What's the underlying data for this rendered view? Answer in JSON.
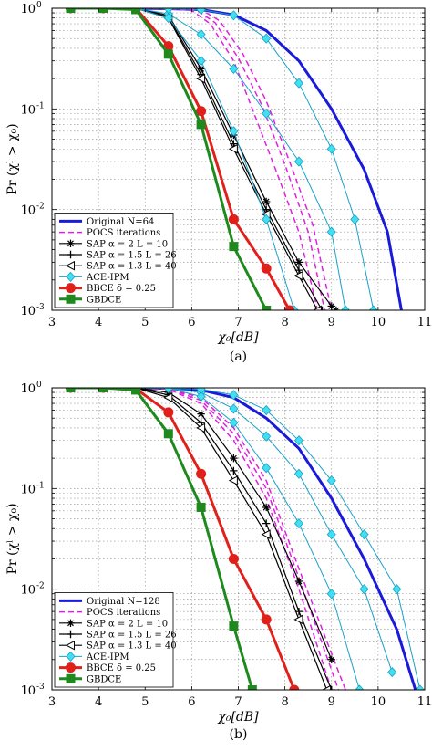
{
  "chart_data": [
    {
      "type": "line",
      "caption": "(a)",
      "xlabel": "χ₀[dB]",
      "ylabel": "Pr (χˡ > χ₀)",
      "xlim": [
        3,
        11
      ],
      "ylim": [
        0.001,
        1
      ],
      "yscale": "log",
      "grid": true,
      "legend_position": "bottom-left",
      "x_ticks": [
        "3",
        "4",
        "5",
        "6",
        "7",
        "8",
        "9",
        "10",
        "11"
      ],
      "y_ticks": [
        {
          "base": "10",
          "exp": "-3",
          "value": 0.001
        },
        {
          "base": "10",
          "exp": "-2",
          "value": 0.01
        },
        {
          "base": "10",
          "exp": "-1",
          "value": 0.1
        },
        {
          "base": "10",
          "exp": "0",
          "value": 1
        }
      ],
      "series": [
        {
          "name": "Original N=64",
          "color": "#1a1adb",
          "width": 3,
          "dash": "",
          "marker": "none",
          "x": [
            3.4,
            4.1,
            4.8,
            5.5,
            6.2,
            6.9,
            7.6,
            8.3,
            9.0,
            9.7,
            10.2,
            10.5
          ],
          "y": [
            1,
            1,
            1,
            0.99,
            0.97,
            0.86,
            0.6,
            0.3,
            0.1,
            0.025,
            0.006,
            0.001
          ]
        },
        {
          "name": "POCS iterations",
          "color": "#e020e0",
          "width": 1.5,
          "dash": "6,4",
          "marker": "none",
          "x": [
            3.4,
            4.1,
            4.8,
            5.5,
            6.0,
            6.4,
            6.9,
            7.3,
            7.8,
            8.3,
            8.7
          ],
          "y": [
            1,
            1,
            1,
            0.99,
            0.95,
            0.7,
            0.3,
            0.1,
            0.025,
            0.006,
            0.001
          ]
        },
        {
          "name": "POCS iterations",
          "color": "#e020e0",
          "width": 1.5,
          "dash": "6,4",
          "marker": "none",
          "legend": false,
          "x": [
            3.4,
            4.1,
            4.8,
            5.5,
            6.1,
            6.5,
            7.0,
            7.5,
            8.0,
            8.5,
            8.85
          ],
          "y": [
            1,
            1,
            1,
            0.99,
            0.96,
            0.72,
            0.32,
            0.11,
            0.028,
            0.006,
            0.001
          ]
        },
        {
          "name": "POCS iterations",
          "color": "#e020e0",
          "width": 1.5,
          "dash": "6,4",
          "marker": "none",
          "legend": false,
          "x": [
            3.4,
            4.1,
            4.8,
            5.5,
            6.2,
            6.6,
            7.1,
            7.6,
            8.1,
            8.6,
            9.0
          ],
          "y": [
            1,
            1,
            1,
            0.99,
            0.97,
            0.75,
            0.35,
            0.12,
            0.03,
            0.007,
            0.001
          ]
        },
        {
          "name": "SAP α = 2 L = 10",
          "color": "#000000",
          "width": 1.2,
          "dash": "",
          "marker": "star",
          "x": [
            3.4,
            4.1,
            4.8,
            5.5,
            6.2,
            6.9,
            7.6,
            8.3,
            9.0,
            9.1
          ],
          "y": [
            1,
            1,
            1,
            0.85,
            0.25,
            0.055,
            0.012,
            0.003,
            0.0011,
            0.001
          ]
        },
        {
          "name": "SAP α = 1.5 L = 26",
          "color": "#000000",
          "width": 1.2,
          "dash": "",
          "marker": "plus",
          "x": [
            3.4,
            4.1,
            4.8,
            5.5,
            6.2,
            6.9,
            7.6,
            8.3,
            8.8
          ],
          "y": [
            1,
            1,
            1,
            0.82,
            0.22,
            0.045,
            0.01,
            0.0025,
            0.001
          ]
        },
        {
          "name": "SAP α = 1.3 L = 40",
          "color": "#000000",
          "width": 1.2,
          "dash": "",
          "marker": "tri-left",
          "x": [
            3.4,
            4.1,
            4.8,
            5.5,
            6.2,
            6.9,
            7.6,
            8.3,
            8.7
          ],
          "y": [
            1,
            1,
            1,
            0.8,
            0.2,
            0.04,
            0.009,
            0.0022,
            0.001
          ]
        },
        {
          "name": "ACE-IPM",
          "color": "#1aa0c8",
          "width": 1,
          "dash": "",
          "marker": "diamond",
          "x": [
            3.4,
            4.1,
            4.8,
            5.5,
            6.2,
            6.9,
            7.6,
            8.3,
            9.0,
            9.3
          ],
          "y": [
            1,
            1,
            1,
            0.88,
            0.55,
            0.25,
            0.09,
            0.03,
            0.006,
            0.001
          ]
        },
        {
          "name": "ACE-IPM",
          "color": "#1aa0c8",
          "width": 1,
          "dash": "",
          "marker": "diamond",
          "legend": false,
          "x": [
            3.4,
            4.1,
            4.8,
            5.5,
            6.2,
            6.9,
            7.6,
            8.2
          ],
          "y": [
            1,
            1,
            1,
            0.8,
            0.3,
            0.06,
            0.008,
            0.001
          ]
        },
        {
          "name": "ACE-IPM",
          "color": "#1aa0c8",
          "width": 1,
          "dash": "",
          "marker": "diamond",
          "legend": false,
          "x": [
            3.4,
            4.1,
            4.8,
            5.5,
            6.2,
            6.9,
            7.6,
            8.3,
            9.0,
            9.5,
            9.9
          ],
          "y": [
            1,
            1,
            1,
            0.99,
            0.97,
            0.85,
            0.5,
            0.18,
            0.04,
            0.008,
            0.001
          ]
        },
        {
          "name": "BBCE δ = 0.25",
          "color": "#e0201a",
          "width": 3,
          "dash": "",
          "marker": "circle",
          "x": [
            3.4,
            4.1,
            4.8,
            5.5,
            6.2,
            6.9,
            7.6,
            8.1
          ],
          "y": [
            1,
            1,
            1,
            0.42,
            0.095,
            0.008,
            0.0026,
            0.001
          ]
        },
        {
          "name": "GBDCE",
          "color": "#1e8a1e",
          "width": 3,
          "dash": "",
          "marker": "square",
          "x": [
            3.4,
            4.1,
            4.8,
            5.5,
            6.2,
            6.9,
            7.6
          ],
          "y": [
            1,
            1,
            0.97,
            0.35,
            0.07,
            0.0043,
            0.001
          ]
        }
      ]
    },
    {
      "type": "line",
      "caption": "(b)",
      "xlabel": "χ₀[dB]",
      "ylabel": "Pr (χˡ > χ₀)",
      "xlim": [
        3,
        11
      ],
      "ylim": [
        0.001,
        1
      ],
      "yscale": "log",
      "grid": true,
      "legend_position": "bottom-left",
      "x_ticks": [
        "3",
        "4",
        "5",
        "6",
        "7",
        "8",
        "9",
        "10",
        "11"
      ],
      "y_ticks": [
        {
          "base": "10",
          "exp": "-3",
          "value": 0.001
        },
        {
          "base": "10",
          "exp": "-2",
          "value": 0.01
        },
        {
          "base": "10",
          "exp": "-1",
          "value": 0.1
        },
        {
          "base": "10",
          "exp": "0",
          "value": 1
        }
      ],
      "series": [
        {
          "name": "Original N=128",
          "color": "#1a1adb",
          "width": 3,
          "dash": "",
          "marker": "none",
          "x": [
            3.4,
            4.1,
            4.8,
            5.5,
            6.2,
            6.9,
            7.6,
            8.3,
            9.0,
            9.7,
            10.4,
            10.8
          ],
          "y": [
            1,
            1,
            1,
            0.99,
            0.95,
            0.8,
            0.5,
            0.25,
            0.08,
            0.02,
            0.004,
            0.001
          ]
        },
        {
          "name": "POCS iterations",
          "color": "#e020e0",
          "width": 1.5,
          "dash": "6,4",
          "marker": "none",
          "x": [
            3.4,
            4.1,
            4.8,
            5.5,
            6.2,
            6.9,
            7.6,
            8.3,
            9.0
          ],
          "y": [
            1,
            1,
            1,
            0.97,
            0.7,
            0.3,
            0.08,
            0.01,
            0.001
          ]
        },
        {
          "name": "POCS iterations",
          "color": "#e020e0",
          "width": 1.5,
          "dash": "6,4",
          "marker": "none",
          "legend": false,
          "x": [
            3.4,
            4.1,
            4.8,
            5.5,
            6.2,
            6.9,
            7.6,
            8.3,
            9.15
          ],
          "y": [
            1,
            1,
            1,
            0.98,
            0.75,
            0.35,
            0.1,
            0.013,
            0.001
          ]
        },
        {
          "name": "POCS iterations",
          "color": "#e020e0",
          "width": 1.5,
          "dash": "6,4",
          "marker": "none",
          "legend": false,
          "x": [
            3.4,
            4.1,
            4.8,
            5.5,
            6.2,
            6.9,
            7.6,
            8.3,
            9.3
          ],
          "y": [
            1,
            1,
            1,
            0.98,
            0.8,
            0.4,
            0.12,
            0.016,
            0.001
          ]
        },
        {
          "name": "SAP α = 2 L = 10",
          "color": "#000000",
          "width": 1.2,
          "dash": "",
          "marker": "star",
          "x": [
            3.4,
            4.1,
            4.8,
            5.5,
            6.2,
            6.9,
            7.6,
            8.3,
            9.0
          ],
          "y": [
            1,
            1,
            1,
            0.9,
            0.55,
            0.2,
            0.065,
            0.012,
            0.002
          ]
        },
        {
          "name": "SAP α = 1.5 L = 26",
          "color": "#000000",
          "width": 1.2,
          "dash": "",
          "marker": "plus",
          "x": [
            3.4,
            4.1,
            4.8,
            5.5,
            6.2,
            6.9,
            7.6,
            8.3,
            9.0
          ],
          "y": [
            1,
            1,
            1,
            0.85,
            0.45,
            0.15,
            0.045,
            0.006,
            0.001
          ]
        },
        {
          "name": "SAP α = 1.3 L = 40",
          "color": "#000000",
          "width": 1.2,
          "dash": "",
          "marker": "tri-left",
          "x": [
            3.4,
            4.1,
            4.8,
            5.5,
            6.2,
            6.9,
            7.6,
            8.3,
            8.9
          ],
          "y": [
            1,
            1,
            1,
            0.8,
            0.4,
            0.12,
            0.035,
            0.005,
            0.001
          ]
        },
        {
          "name": "ACE-IPM",
          "color": "#1aa0c8",
          "width": 1,
          "dash": "",
          "marker": "diamond",
          "x": [
            3.4,
            4.1,
            4.8,
            5.5,
            6.2,
            6.9,
            7.6,
            8.3,
            9.0,
            9.7,
            10.3
          ],
          "y": [
            1,
            1,
            1,
            0.99,
            0.9,
            0.62,
            0.33,
            0.14,
            0.035,
            0.01,
            0.0015
          ]
        },
        {
          "name": "ACE-IPM",
          "color": "#1aa0c8",
          "width": 1,
          "dash": "",
          "marker": "diamond",
          "legend": false,
          "x": [
            3.4,
            4.1,
            4.8,
            5.5,
            6.2,
            6.9,
            7.6,
            8.3,
            9.0,
            9.6
          ],
          "y": [
            1,
            1,
            1,
            0.99,
            0.82,
            0.45,
            0.16,
            0.045,
            0.009,
            0.001
          ]
        },
        {
          "name": "ACE-IPM",
          "color": "#1aa0c8",
          "width": 1,
          "dash": "",
          "marker": "diamond",
          "legend": false,
          "x": [
            3.4,
            4.1,
            4.8,
            5.5,
            6.2,
            6.9,
            7.6,
            8.3,
            9.0,
            9.7,
            10.4,
            10.9
          ],
          "y": [
            1,
            1,
            1,
            0.99,
            0.97,
            0.85,
            0.6,
            0.3,
            0.12,
            0.035,
            0.01,
            0.001
          ]
        },
        {
          "name": "BBCE δ = 0.25",
          "color": "#e0201a",
          "width": 3,
          "dash": "",
          "marker": "circle",
          "x": [
            3.4,
            4.1,
            4.8,
            5.5,
            6.2,
            6.9,
            7.6,
            8.2
          ],
          "y": [
            1,
            1,
            0.98,
            0.57,
            0.14,
            0.02,
            0.005,
            0.001
          ]
        },
        {
          "name": "GBDCE",
          "color": "#1e8a1e",
          "width": 3,
          "dash": "",
          "marker": "square",
          "x": [
            3.4,
            4.1,
            4.8,
            5.5,
            6.2,
            6.9,
            7.3
          ],
          "y": [
            1,
            1,
            0.95,
            0.35,
            0.065,
            0.0043,
            0.001
          ]
        }
      ]
    }
  ]
}
